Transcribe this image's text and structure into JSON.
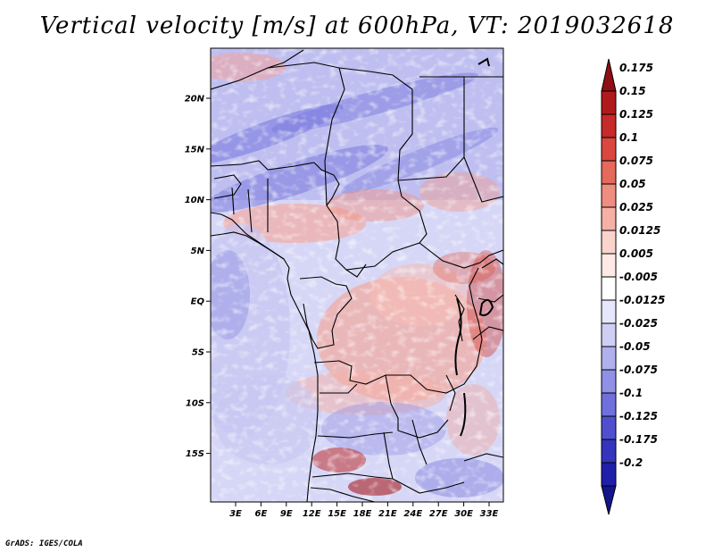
{
  "title": "Vertical velocity [m/s] at 600hPa, VT: 2019032618",
  "credit": "GrADS: IGES/COLA",
  "lat_ticks": [
    "20N",
    "15N",
    "10N",
    "5N",
    "EQ",
    "5S",
    "10S",
    "15S"
  ],
  "lon_ticks": [
    "3E",
    "6E",
    "9E",
    "12E",
    "15E",
    "18E",
    "21E",
    "24E",
    "27E",
    "30E",
    "33E"
  ],
  "colorbar": {
    "labels": [
      "0.175",
      "0.15",
      "0.125",
      "0.1",
      "0.075",
      "0.05",
      "0.025",
      "0.0125",
      "0.005",
      "-0.005",
      "-0.0125",
      "-0.025",
      "-0.05",
      "-0.075",
      "-0.1",
      "-0.125",
      "-0.175",
      "-0.2"
    ],
    "colors": [
      "#8e0f14",
      "#b01a1d",
      "#c62a2a",
      "#d9473f",
      "#e56a5c",
      "#ee8d80",
      "#f5b1a6",
      "#fad3cc",
      "#fde9e6",
      "#ffffff",
      "#e7e7fb",
      "#cfcff5",
      "#b0b0ee",
      "#9090e6",
      "#7070dd",
      "#5050cf",
      "#3434bf",
      "#1f1faa",
      "#14148c"
    ]
  }
}
